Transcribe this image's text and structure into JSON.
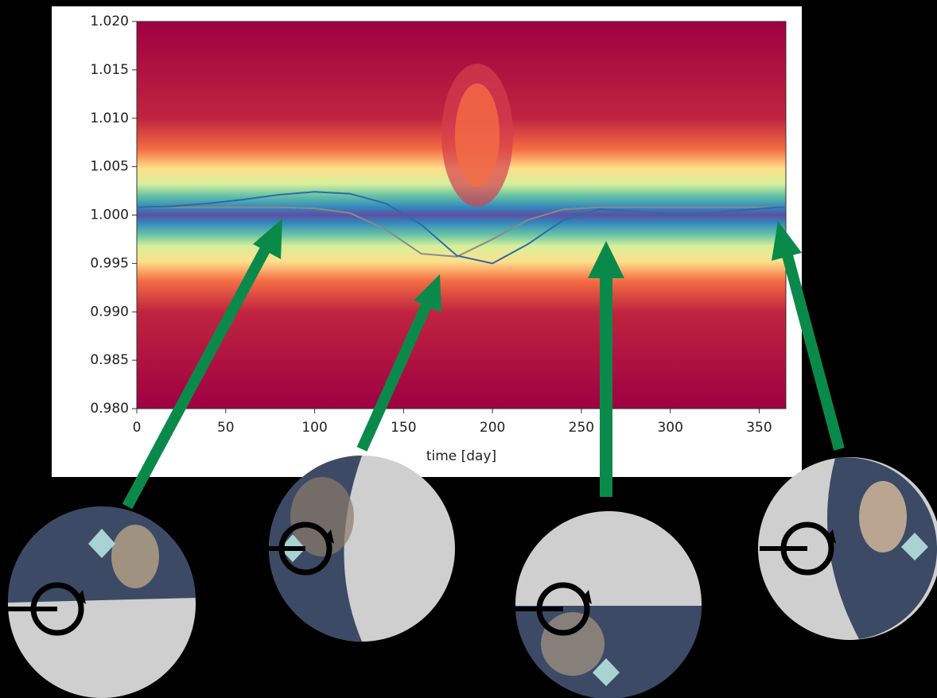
{
  "chart_data": {
    "type": "line",
    "xlabel": "time [day]",
    "x": [
      0,
      20,
      40,
      60,
      80,
      100,
      120,
      140,
      160,
      180,
      200,
      220,
      240,
      260,
      280,
      300,
      320,
      340,
      360,
      365
    ],
    "series": [
      {
        "color": "#2c6aa8",
        "values": [
          1.0008,
          1.0009,
          1.0012,
          1.0016,
          1.0021,
          1.0024,
          1.0022,
          1.0012,
          0.999,
          0.9958,
          0.995,
          0.997,
          0.9995,
          1.0006,
          1.0004,
          1.0001,
          1.0002,
          1.0005,
          1.0008,
          1.0008
        ]
      },
      {
        "color": "#8a8a8a",
        "values": [
          1.0008,
          1.0008,
          1.0008,
          1.0008,
          1.0008,
          1.0007,
          1.0002,
          0.9985,
          0.996,
          0.9957,
          0.9975,
          0.9995,
          1.0006,
          1.0008,
          1.0008,
          1.0008,
          1.0008,
          1.0008,
          1.0008,
          1.0008
        ]
      }
    ],
    "xlim": [
      0,
      365
    ],
    "ylim": [
      0.98,
      1.02
    ],
    "xticks": [
      0,
      50,
      100,
      150,
      200,
      250,
      300,
      350
    ],
    "yticks": [
      {
        "value": 0.98,
        "label": "0.980"
      },
      0.985,
      {
        "value": 0.99,
        "label": "0.990"
      },
      0.995,
      {
        "value": 1,
        "label": "1.000"
      },
      1.005,
      {
        "value": 1.01,
        "label": "1.010"
      },
      1.015,
      {
        "value": 1.02,
        "label": "1.020"
      }
    ]
  }
}
